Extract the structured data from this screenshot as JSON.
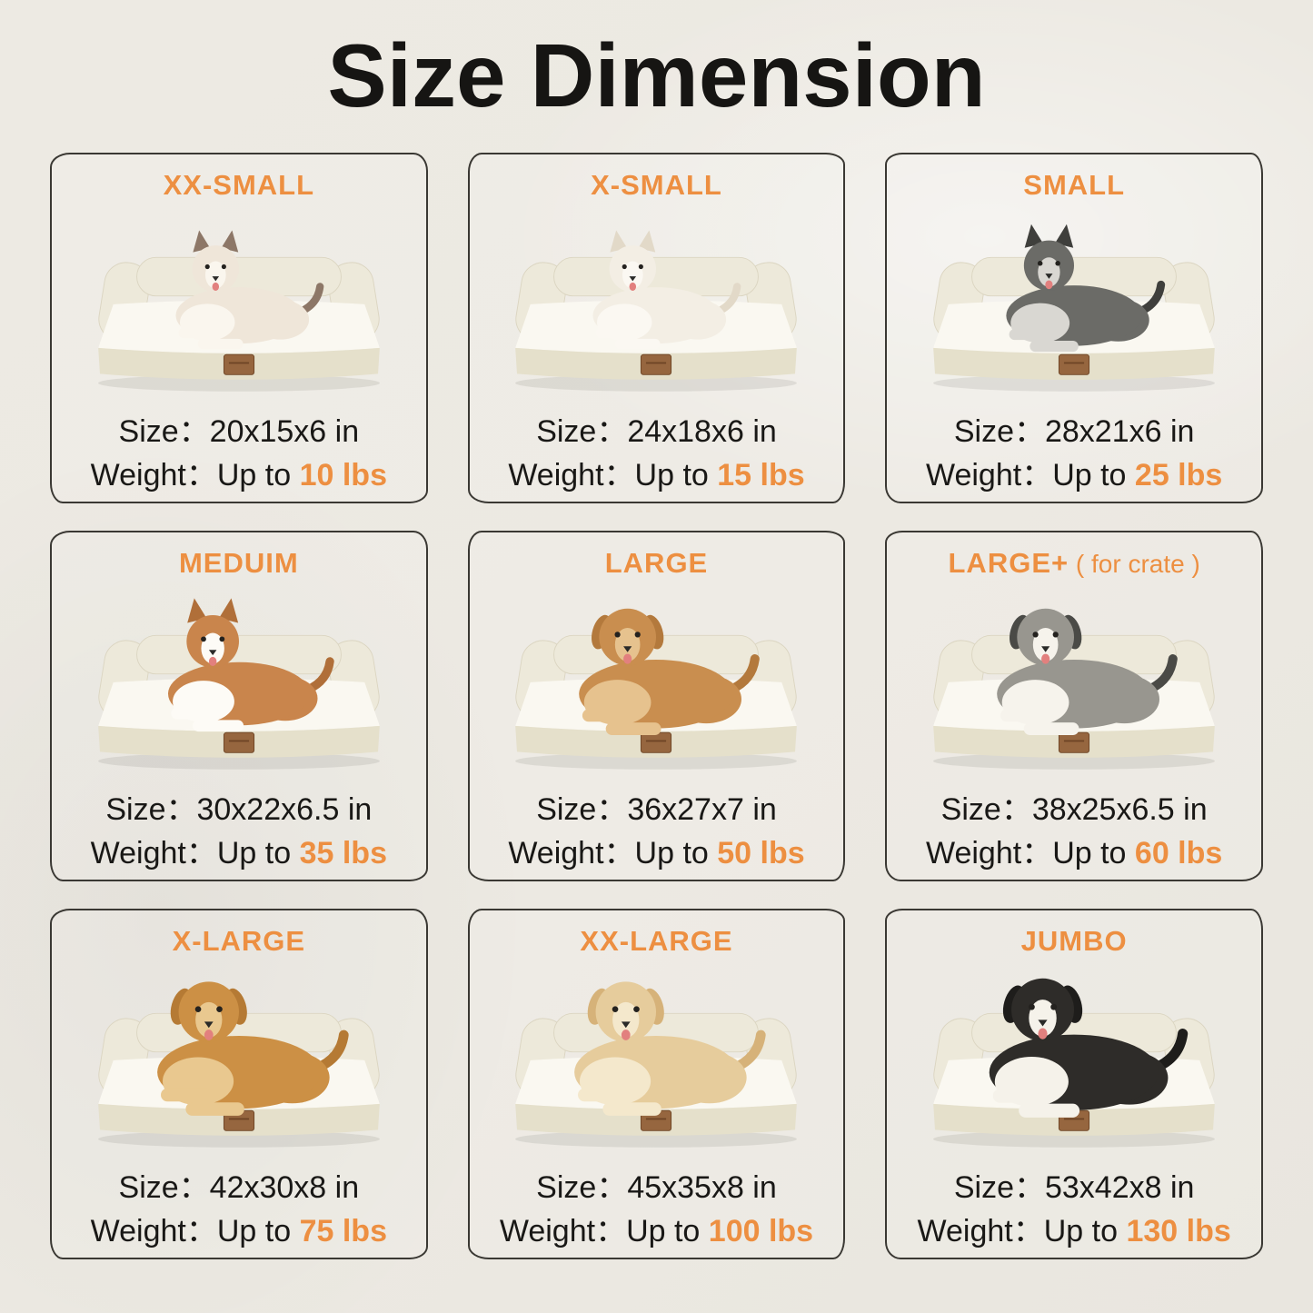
{
  "page": {
    "title": "Size Dimension",
    "background_color": "#ECE9E2",
    "accent_color": "#ED8F41",
    "text_color": "#191816",
    "card_border_color": "#3a3833"
  },
  "labels": {
    "size": "Size：",
    "weight": "Weight：",
    "weight_prefix": "Up to "
  },
  "bed": {
    "bolster": "#EDE9DA",
    "bolster_edge": "#DBD5C1",
    "top": "#FAF8F1",
    "base": "#E5E0CB",
    "tag": "#96663F",
    "tag_edge": "#6E4526",
    "shadow": "rgba(60,55,45,0.10)"
  },
  "cards": [
    {
      "name": "XX-SMALL",
      "name_suffix": "",
      "size": "20x15x6 in",
      "weight": "10 lbs",
      "pet": "ragdoll-cat",
      "pet_colors": {
        "body": "#EFE6D9",
        "chest": "#FAF6EE",
        "dark": "#8D7767"
      },
      "ears": "up",
      "scale": 0.82
    },
    {
      "name": "X-SMALL",
      "name_suffix": "",
      "size": "24x18x6 in",
      "weight": "15 lbs",
      "pet": "pomeranian-dog",
      "pet_colors": {
        "body": "#F3EEE4",
        "chest": "#FBF8F2",
        "dark": "#E2D9C8"
      },
      "ears": "up",
      "scale": 0.82
    },
    {
      "name": "SMALL",
      "name_suffix": "",
      "size": "28x21x6 in",
      "weight": "25 lbs",
      "pet": "schnauzer-dog",
      "pet_colors": {
        "body": "#6B6B67",
        "chest": "#D9D7D2",
        "dark": "#3F3F3C"
      },
      "ears": "up",
      "scale": 0.88
    },
    {
      "name": "MEDUIM",
      "name_suffix": "",
      "size": "30x22x6.5 in",
      "weight": "35 lbs",
      "pet": "corgi-dog",
      "pet_colors": {
        "body": "#C9854C",
        "chest": "#FDFBF6",
        "dark": "#B06F39"
      },
      "ears": "up",
      "scale": 0.92
    },
    {
      "name": "LARGE",
      "name_suffix": "",
      "size": "36x27x7 in",
      "weight": "50 lbs",
      "pet": "golden-retriever-dog",
      "pet_colors": {
        "body": "#C98E4F",
        "chest": "#E6C28E",
        "dark": "#B3793C"
      },
      "ears": "floppy",
      "scale": 1.0
    },
    {
      "name": "LARGE+",
      "name_suffix": " ( for crate )",
      "size": "38x25x6.5 in",
      "weight": "60 lbs",
      "pet": "australian-shepherd-dog",
      "pet_colors": {
        "body": "#98968F",
        "chest": "#F6F3EC",
        "dark": "#4A4A46"
      },
      "ears": "floppy",
      "scale": 1.0
    },
    {
      "name": "X-LARGE",
      "name_suffix": "",
      "size": "42x30x8 in",
      "weight": "75 lbs",
      "pet": "golden-retriever-dog",
      "pet_colors": {
        "body": "#CC9045",
        "chest": "#E9C88F",
        "dark": "#B57A34"
      },
      "ears": "floppy",
      "scale": 1.06
    },
    {
      "name": "XX-LARGE",
      "name_suffix": "",
      "size": "45x35x8 in",
      "weight": "100 lbs",
      "pet": "yellow-labrador-dog",
      "pet_colors": {
        "body": "#E6CC9C",
        "chest": "#F4E8CC",
        "dark": "#D6B279"
      },
      "ears": "floppy",
      "scale": 1.06
    },
    {
      "name": "JUMBO",
      "name_suffix": "",
      "size": "53x42x8 in",
      "weight": "130 lbs",
      "pet": "bernese-mountain-dog",
      "pet_colors": {
        "body": "#2E2C29",
        "chest": "#F5F2EA",
        "dark": "#1E1D1B"
      },
      "ears": "floppy",
      "scale": 1.1
    }
  ]
}
